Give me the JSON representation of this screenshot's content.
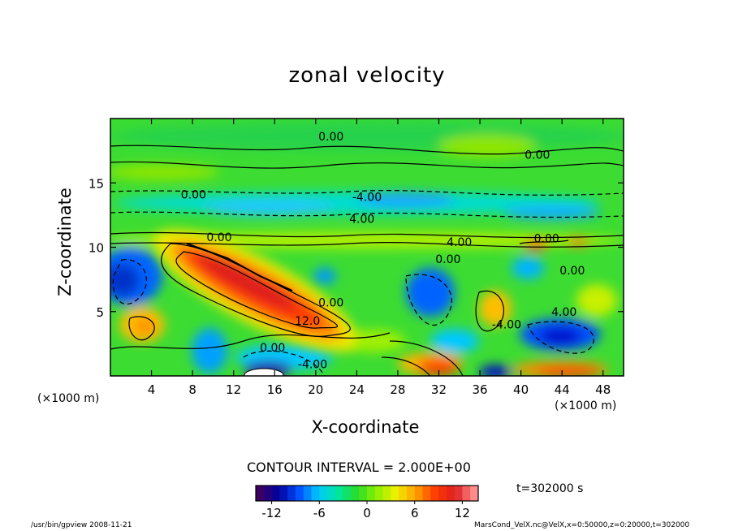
{
  "chart_data": {
    "type": "heatmap",
    "title": "zonal velocity",
    "xlabel": "X-coordinate",
    "ylabel": "Z-coordinate",
    "x_unit": "(×1000 m)",
    "x_unit_right": "(×1000 m)",
    "xlim": [
      0,
      50
    ],
    "ylim": [
      0,
      20
    ],
    "x_ticks": [
      4,
      8,
      12,
      16,
      20,
      24,
      28,
      32,
      36,
      40,
      44,
      48
    ],
    "y_ticks": [
      5,
      10,
      15
    ],
    "contour_interval_text": "CONTOUR INTERVAL = 2.000E+00",
    "contour_labels": [
      {
        "text": "0.00",
        "x": 21.5,
        "y": 18.6
      },
      {
        "text": "0.00",
        "x": 41.6,
        "y": 17.2
      },
      {
        "text": "0.00",
        "x": 8.1,
        "y": 14.1
      },
      {
        "text": "-4.00",
        "x": 25.0,
        "y": 13.9
      },
      {
        "text": "4.00",
        "x": 24.5,
        "y": 12.2
      },
      {
        "text": "0.00",
        "x": 10.6,
        "y": 10.8
      },
      {
        "text": "4.00",
        "x": 34.0,
        "y": 10.4
      },
      {
        "text": "0.00",
        "x": 42.5,
        "y": 10.7
      },
      {
        "text": "0.00",
        "x": 32.9,
        "y": 9.1
      },
      {
        "text": "0.00",
        "x": 45.0,
        "y": 8.2
      },
      {
        "text": "0.00",
        "x": 21.5,
        "y": 5.7
      },
      {
        "text": "12.0",
        "x": 19.2,
        "y": 4.3
      },
      {
        "text": "-4.00",
        "x": 38.6,
        "y": 4.0
      },
      {
        "text": "4.00",
        "x": 44.2,
        "y": 5.0
      },
      {
        "text": "0.00",
        "x": 15.8,
        "y": 2.2
      },
      {
        "text": "-4.00",
        "x": 19.7,
        "y": 0.9
      }
    ],
    "colorbar": {
      "min": -14,
      "max": 14,
      "ticks": [
        -12,
        -6,
        0,
        6,
        12
      ],
      "colors": [
        "#3c0064",
        "#0000a0",
        "#0050ff",
        "#00c8ff",
        "#00e6a0",
        "#28dc28",
        "#8cf000",
        "#f0f000",
        "#ffa000",
        "#ff3c00",
        "#dc1e1e",
        "#ff8c8c"
      ]
    },
    "time_label": "t=302000 s"
  },
  "footer": {
    "left": "/usr/bin/gpview  2008-11-21",
    "right": "MarsCond_VelX.nc@VelX,x=0:50000,z=0:20000,t=302000"
  }
}
